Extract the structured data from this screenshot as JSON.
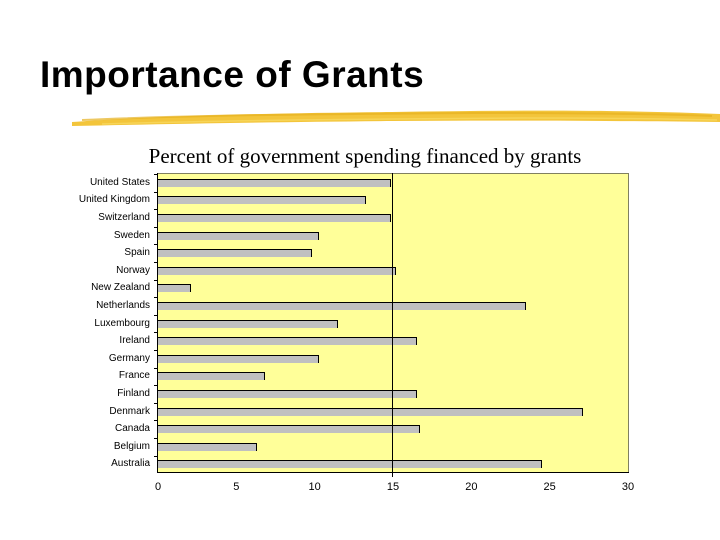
{
  "slide": {
    "title": "Importance of Grants",
    "subtitle": "Percent of government spending financed by grants",
    "accent_color": "#f2c230",
    "plot_background": "#ffff99",
    "bar_color": "#c0c0c0"
  },
  "chart_data": {
    "type": "bar",
    "orientation": "horizontal",
    "title": "Percent of government spending financed by grants",
    "xlabel": "",
    "ylabel": "",
    "xlim": [
      0,
      30
    ],
    "x_ticks": [
      0,
      5,
      10,
      15,
      20,
      25,
      30
    ],
    "reference_line": 15,
    "grid": false,
    "legend": null,
    "categories": [
      "United States",
      "United Kingdom",
      "Switzerland",
      "Sweden",
      "Spain",
      "Norway",
      "New Zealand",
      "Netherlands",
      "Luxembourg",
      "Ireland",
      "Germany",
      "France",
      "Finland",
      "Denmark",
      "Canada",
      "Belgium",
      "Australia"
    ],
    "values": [
      14.9,
      13.3,
      14.9,
      10.3,
      9.8,
      15.2,
      2.1,
      23.5,
      11.5,
      16.5,
      10.3,
      6.8,
      16.5,
      27.1,
      16.7,
      6.3,
      24.5
    ]
  }
}
